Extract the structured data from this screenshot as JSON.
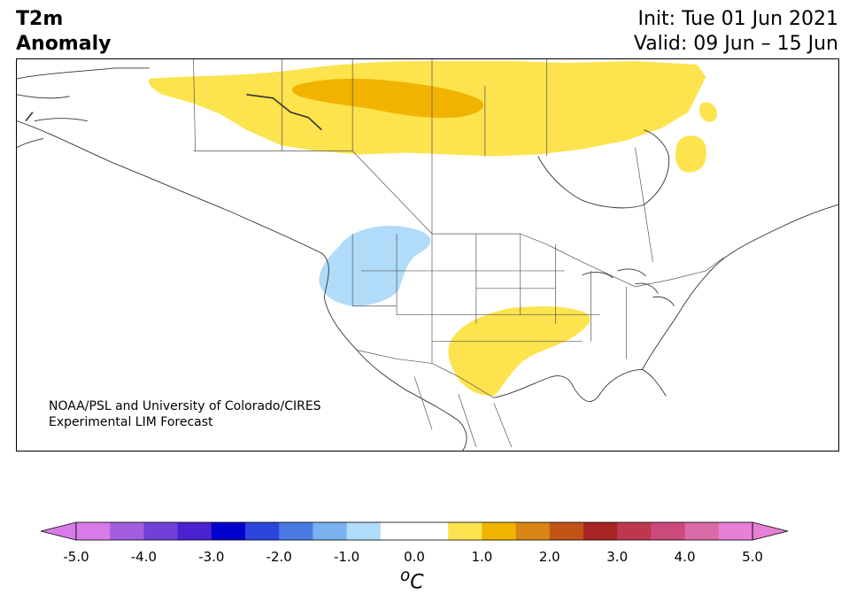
{
  "title": {
    "line1": "T2m",
    "line2": "Anomaly"
  },
  "dates": {
    "init": "Init: Tue 01 Jun 2021",
    "valid": "Valid: 09 Jun – 15 Jun"
  },
  "credit": {
    "line1": "NOAA/PSL and University of Colorado/CIRES",
    "line2": "Experimental LIM Forecast"
  },
  "colorbar": {
    "min": -5.0,
    "max": 5.0,
    "step": 0.5,
    "tick_labels": [
      "-5.0",
      "-4.0",
      "-3.0",
      "-2.0",
      "-1.0",
      "0.0",
      "1.0",
      "2.0",
      "3.0",
      "4.0",
      "5.0"
    ],
    "colors": [
      "#d87be8",
      "#a35ee0",
      "#7040d8",
      "#4a22d0",
      "#0000cc",
      "#2a45dc",
      "#4a79e2",
      "#79b2ef",
      "#b0dcf9",
      "#ffffff",
      "#ffffff",
      "#fde34d",
      "#f1b300",
      "#d88513",
      "#c35418",
      "#a82323",
      "#bd374d",
      "#cc4a7a",
      "#da6aa8",
      "#e87fd6"
    ],
    "under_color": "#d87be8",
    "over_color": "#e87fd6",
    "unit_base": "o",
    "unit_label": "C"
  },
  "anomaly_regions": [
    {
      "name": "canada-north",
      "level": "+1",
      "color": "#fde34d"
    },
    {
      "name": "canada-north-core",
      "level": "+1.5",
      "color": "#f1b300"
    },
    {
      "name": "quebec",
      "level": "+1",
      "color": "#fde34d"
    },
    {
      "name": "southern-plains",
      "level": "+1",
      "color": "#fde34d"
    },
    {
      "name": "pacific-northwest",
      "level": "-1",
      "color": "#b0dcf9"
    }
  ]
}
